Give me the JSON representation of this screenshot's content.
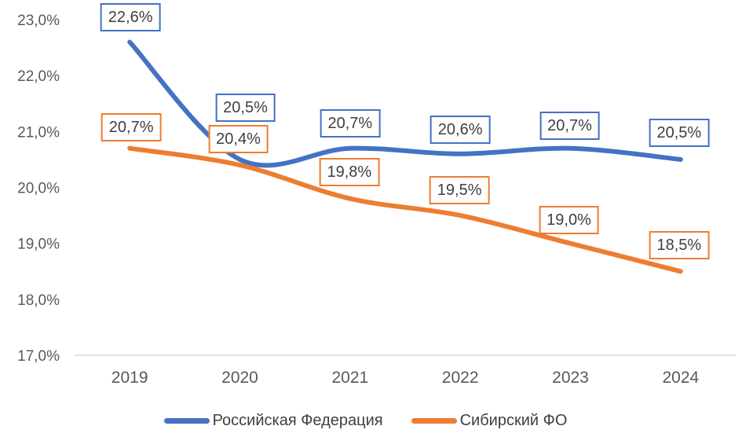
{
  "chart_data": {
    "type": "line",
    "title": "",
    "categories": [
      "2019",
      "2020",
      "2021",
      "2022",
      "2023",
      "2024"
    ],
    "y_axis": {
      "min": 17.0,
      "max": 23.0,
      "step": 1.0,
      "tick_labels_top_to_bottom": [
        "23,0%",
        "22,0%",
        "21,0%",
        "20,0%",
        "19,0%",
        "18,0%",
        "17,0%"
      ]
    },
    "grid": false,
    "legend_position": "bottom",
    "colors": {
      "axis_line": "#D9D9D9",
      "axis_text": "#595959",
      "data_label_text": "#3F3F3F"
    },
    "series": [
      {
        "id": "rf",
        "name": "Российская Федерация",
        "color": "#4472C4",
        "values": [
          22.6,
          20.5,
          20.7,
          20.6,
          20.7,
          20.5
        ],
        "labels": [
          "22,6%",
          "20,5%",
          "20,7%",
          "20,6%",
          "20,7%",
          "20,5%"
        ],
        "label_layout": {
          "gaps": [
            13,
            48,
            14,
            13,
            11,
            16
          ],
          "dx": [
            1,
            7,
            0,
            0,
            -1,
            -2
          ]
        }
      },
      {
        "id": "sfo",
        "name": "Сибирский ФО",
        "color": "#ED7D31",
        "values": [
          20.7,
          20.4,
          19.8,
          19.5,
          19.0,
          18.5
        ],
        "labels": [
          "20,7%",
          "20,4%",
          "19,8%",
          "19,5%",
          "19,0%",
          "18,5%"
        ],
        "label_layout": {
          "gaps": [
            9,
            15,
            16,
            14,
            12,
            15
          ],
          "dx": [
            2,
            -2,
            -1,
            -1,
            -2,
            -2
          ]
        }
      }
    ],
    "legend": [
      "Российская Федерация",
      "Сибирский ФО"
    ]
  }
}
